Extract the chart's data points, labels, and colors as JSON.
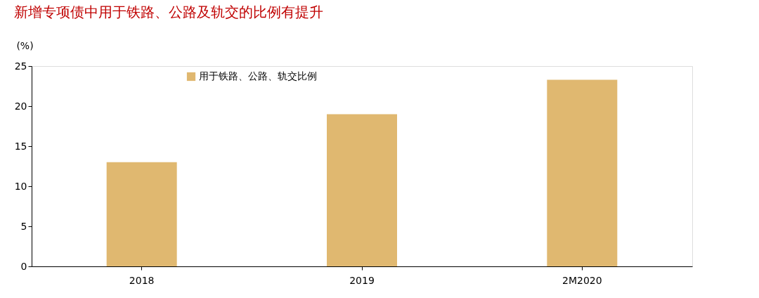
{
  "chart_data": {
    "type": "bar",
    "title": "新增专项债中用于铁路、公路及轨交的比例有提升",
    "ylabel": "(%)",
    "categories": [
      "2018",
      "2019",
      "2M2020"
    ],
    "series": [
      {
        "name": "用于铁路、公路、轨交比例",
        "color": "#e0b870",
        "values": [
          13,
          19,
          23.3
        ]
      }
    ],
    "ylim": [
      0,
      25
    ],
    "yticks": [
      0,
      5,
      10,
      15,
      20,
      25
    ],
    "grid": false,
    "legend": "top"
  }
}
